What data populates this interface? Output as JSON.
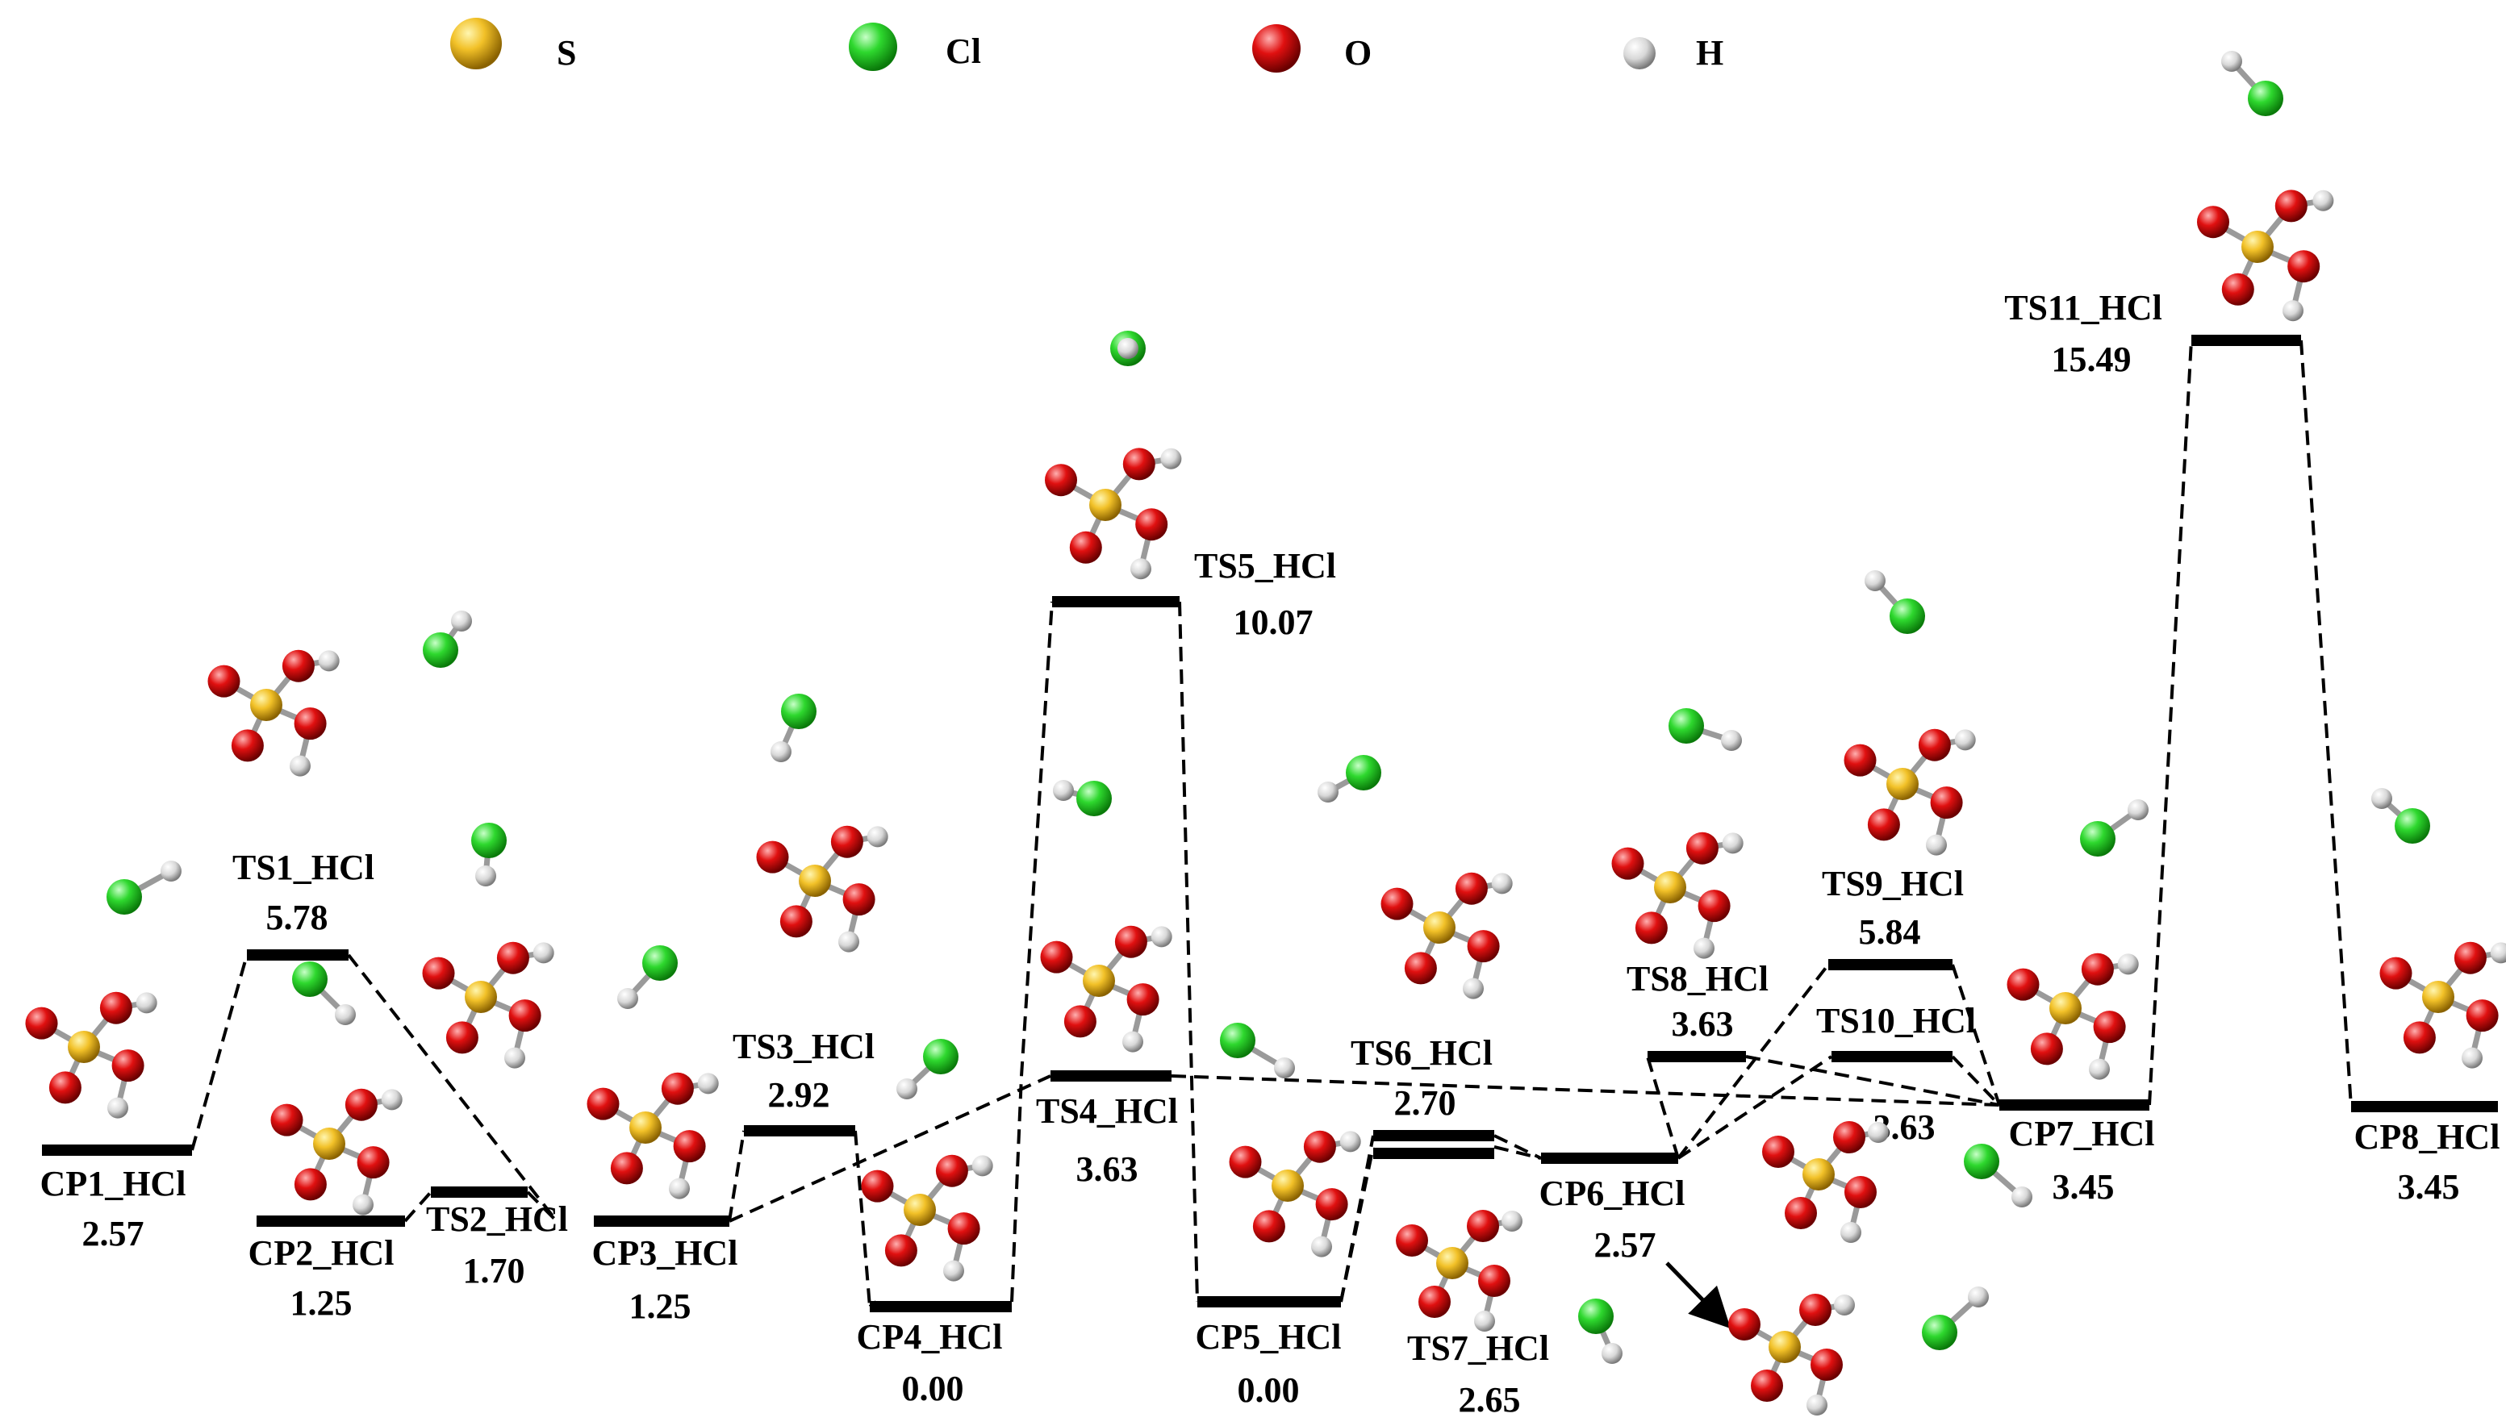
{
  "legend": [
    {
      "symbol": "S",
      "color": "#e9b425"
    },
    {
      "symbol": "Cl",
      "color": "#2fd12f"
    },
    {
      "symbol": "O",
      "color": "#d10d0d"
    },
    {
      "symbol": "H",
      "color": "#dcdcdc"
    }
  ],
  "states": [
    {
      "id": "CP1",
      "name": "CP1_HCl",
      "energy": "2.57"
    },
    {
      "id": "TS1",
      "name": "TS1_HCl",
      "energy": "5.78"
    },
    {
      "id": "CP2",
      "name": "CP2_HCl",
      "energy": "1.25"
    },
    {
      "id": "TS2",
      "name": "TS2_HCl",
      "energy": "1.70"
    },
    {
      "id": "CP3",
      "name": "CP3_HCl",
      "energy": "1.25"
    },
    {
      "id": "TS3",
      "name": "TS3_HCl",
      "energy": "2.92"
    },
    {
      "id": "CP4",
      "name": "CP4_HCl",
      "energy": "0.00"
    },
    {
      "id": "TS5",
      "name": "TS5_HCl",
      "energy": "10.07"
    },
    {
      "id": "TS4",
      "name": "TS4_HCl",
      "energy": "3.63"
    },
    {
      "id": "CP5",
      "name": "CP5_HCl",
      "energy": "0.00"
    },
    {
      "id": "TS6",
      "name": "TS6_HCl",
      "energy": "2.70"
    },
    {
      "id": "TS7",
      "name": "TS7_HCl",
      "energy": "2.65"
    },
    {
      "id": "CP6",
      "name": "CP6_HCl",
      "energy": "2.57"
    },
    {
      "id": "TS8",
      "name": "TS8_HCl",
      "energy": "3.63"
    },
    {
      "id": "TS9",
      "name": "TS9_HCl",
      "energy": "5.84"
    },
    {
      "id": "TS10",
      "name": "TS10_HCl",
      "energy": "3.63"
    },
    {
      "id": "CP7",
      "name": "CP7_HCl",
      "energy": "3.45"
    },
    {
      "id": "TS11",
      "name": "TS11_HCl",
      "energy": "15.49"
    },
    {
      "id": "CP8",
      "name": "CP8_HCl",
      "energy": "3.45"
    }
  ]
}
